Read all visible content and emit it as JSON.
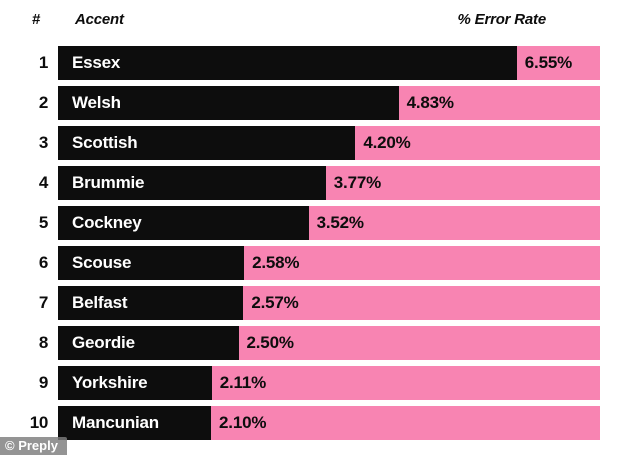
{
  "header": {
    "rank": "#",
    "accent": "Accent",
    "error_rate": "% Error Rate"
  },
  "watermark": "© Preply",
  "colors": {
    "bar_black": "#0d0d0d",
    "track_pink": "#f884b2",
    "bar_text": "#ffffff",
    "value_text": "#0d0d0d",
    "background": "#ffffff"
  },
  "chart_data": {
    "type": "bar",
    "orientation": "horizontal",
    "title": "",
    "xlabel": "% Error Rate",
    "ylabel": "Accent",
    "xlim": [
      0,
      7.7
    ],
    "grid": false,
    "legend": false,
    "categories": [
      "Essex",
      "Welsh",
      "Scottish",
      "Brummie",
      "Cockney",
      "Scouse",
      "Belfast",
      "Geordie",
      "Yorkshire",
      "Mancunian"
    ],
    "values": [
      6.55,
      4.83,
      4.2,
      3.77,
      3.52,
      2.58,
      2.57,
      2.5,
      2.11,
      2.1
    ],
    "rows": [
      {
        "rank": "1",
        "accent": "Essex",
        "value": 6.55,
        "label": "6.55%"
      },
      {
        "rank": "2",
        "accent": "Welsh",
        "value": 4.83,
        "label": "4.83%"
      },
      {
        "rank": "3",
        "accent": "Scottish",
        "value": 4.2,
        "label": "4.20%"
      },
      {
        "rank": "4",
        "accent": "Brummie",
        "value": 3.77,
        "label": "3.77%"
      },
      {
        "rank": "5",
        "accent": "Cockney",
        "value": 3.52,
        "label": "3.52%"
      },
      {
        "rank": "6",
        "accent": "Scouse",
        "value": 2.58,
        "label": "2.58%"
      },
      {
        "rank": "7",
        "accent": "Belfast",
        "value": 2.57,
        "label": "2.57%"
      },
      {
        "rank": "8",
        "accent": "Geordie",
        "value": 2.5,
        "label": "2.50%"
      },
      {
        "rank": "9",
        "accent": "Yorkshire",
        "value": 2.11,
        "label": "2.11%"
      },
      {
        "rank": "10",
        "accent": "Mancunian",
        "value": 2.1,
        "label": "2.10%"
      }
    ]
  }
}
